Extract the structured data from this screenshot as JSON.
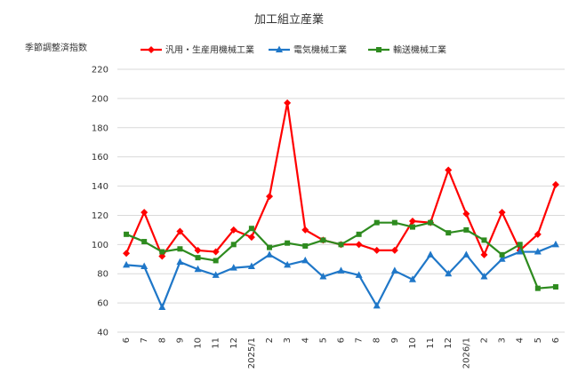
{
  "chart_data": {
    "type": "line",
    "title": "加工組立産業",
    "ylabel": "季節調整済指数",
    "xlabel": "",
    "ylim": [
      40,
      220
    ],
    "yticks": [
      40,
      60,
      80,
      100,
      120,
      140,
      160,
      180,
      200,
      220
    ],
    "categories": [
      "6",
      "7",
      "8",
      "9",
      "10",
      "11",
      "12",
      "2025/1",
      "2",
      "3",
      "4",
      "5",
      "6",
      "7",
      "8",
      "9",
      "10",
      "11",
      "12",
      "2026/1",
      "2",
      "3",
      "4",
      "5",
      "6"
    ],
    "grid": "horizontal",
    "legend_position": "top",
    "series": [
      {
        "name": "汎用・生産用機械工業",
        "color": "#ff0000",
        "marker": "diamond",
        "values": [
          94,
          122,
          92,
          109,
          96,
          95,
          110,
          105,
          133,
          197,
          110,
          103,
          100,
          100,
          96,
          96,
          116,
          115,
          151,
          121,
          93,
          122,
          96,
          107,
          141
        ]
      },
      {
        "name": "電気機械工業",
        "color": "#1f77c8",
        "marker": "triangle",
        "values": [
          86,
          85,
          57,
          88,
          83,
          79,
          84,
          85,
          93,
          86,
          89,
          78,
          82,
          79,
          58,
          82,
          76,
          93,
          80,
          93,
          78,
          90,
          95,
          95,
          100
        ]
      },
      {
        "name": "輸送機械工業",
        "color": "#2e8b1f",
        "marker": "square",
        "values": [
          107,
          102,
          95,
          97,
          91,
          89,
          100,
          111,
          98,
          101,
          99,
          103,
          100,
          107,
          115,
          115,
          112,
          115,
          108,
          110,
          103,
          93,
          100,
          70,
          71
        ]
      }
    ]
  }
}
